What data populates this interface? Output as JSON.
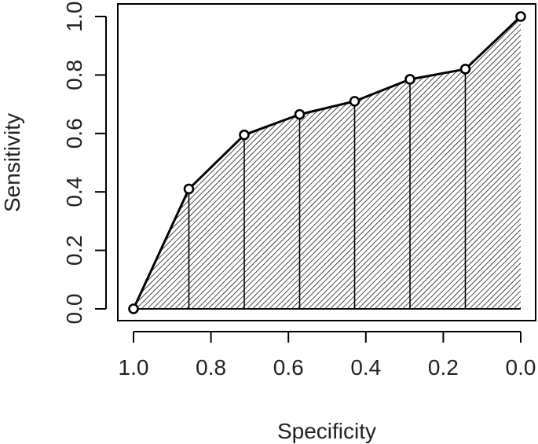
{
  "chart_data": {
    "type": "line",
    "title": "",
    "xlabel": "Specificity",
    "ylabel": "Sensitivity",
    "x_reversed": true,
    "xlim": [
      1.0,
      0.0
    ],
    "ylim": [
      0.0,
      1.0
    ],
    "xticks": [
      "1.0",
      "0.8",
      "0.6",
      "0.4",
      "0.2",
      "0.0"
    ],
    "yticks": [
      "0.0",
      "0.2",
      "0.4",
      "0.6",
      "0.8",
      "1.0"
    ],
    "grid": false,
    "legend": "none",
    "area_fill": "hatched",
    "series": [
      {
        "x": [
          1.0,
          0.857,
          0.714,
          0.571,
          0.429,
          0.286,
          0.143,
          0.0
        ],
        "y": [
          0.0,
          0.41,
          0.595,
          0.665,
          0.71,
          0.785,
          0.82,
          1.0
        ]
      }
    ]
  }
}
